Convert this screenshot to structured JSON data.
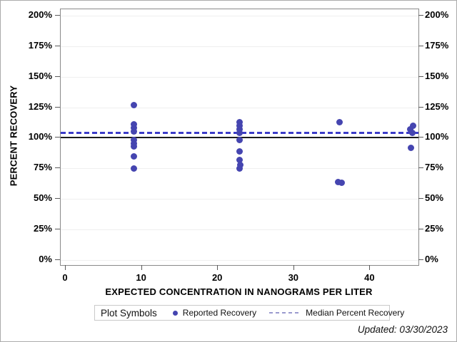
{
  "figure": {
    "updated_note": "Updated: 03/30/2023"
  },
  "chart_data": {
    "type": "scatter",
    "title": "",
    "xlabel": "EXPECTED CONCENTRATION IN NANOGRAMS PER LITER",
    "ylabel": "PERCENT RECOVERY",
    "xlim": [
      -0.7,
      46.3
    ],
    "ylim": [
      0,
      205
    ],
    "grid": true,
    "x_ticks": [
      {
        "v": 0,
        "label": "0"
      },
      {
        "v": 10,
        "label": "10"
      },
      {
        "v": 20,
        "label": "20"
      },
      {
        "v": 30,
        "label": "30"
      },
      {
        "v": 40,
        "label": "40"
      }
    ],
    "y_ticks": [
      {
        "v": 0,
        "label": "0%"
      },
      {
        "v": 25,
        "label": "25%"
      },
      {
        "v": 50,
        "label": "50%"
      },
      {
        "v": 75,
        "label": "75%"
      },
      {
        "v": 100,
        "label": "100%"
      },
      {
        "v": 125,
        "label": "125%"
      },
      {
        "v": 150,
        "label": "150%"
      },
      {
        "v": 175,
        "label": "175%"
      },
      {
        "v": 200,
        "label": "200%"
      }
    ],
    "reference_line": {
      "y": 100,
      "color": "#1c1c1c"
    },
    "median_line": {
      "y": 104,
      "color": "#3b3bc8",
      "style": "dashed"
    },
    "series": [
      {
        "name": "Reported Recovery",
        "marker": "circle",
        "color": "#4545b0",
        "points": [
          [
            9,
            127
          ],
          [
            9,
            111
          ],
          [
            9,
            108
          ],
          [
            9,
            105
          ],
          [
            9,
            98
          ],
          [
            9,
            95
          ],
          [
            9,
            93
          ],
          [
            9,
            85
          ],
          [
            9,
            75
          ],
          [
            22.8,
            113
          ],
          [
            22.8,
            110
          ],
          [
            22.8,
            107
          ],
          [
            22.8,
            104
          ],
          [
            22.8,
            98
          ],
          [
            22.8,
            89
          ],
          [
            22.8,
            82
          ],
          [
            22.9,
            78
          ],
          [
            22.8,
            75
          ],
          [
            36,
            113
          ],
          [
            35.8,
            64
          ],
          [
            36.3,
            63
          ],
          [
            45.6,
            110
          ],
          [
            45.3,
            107
          ],
          [
            45.5,
            104
          ],
          [
            45.4,
            92
          ]
        ]
      }
    ],
    "legend": {
      "title": "Plot Symbols",
      "entries": [
        {
          "label": "Reported Recovery",
          "marker": "dot",
          "color": "#4545b0"
        },
        {
          "label": "Median Percent Recovery",
          "marker": "dashed-line",
          "color": "#9a9ace"
        }
      ]
    }
  }
}
